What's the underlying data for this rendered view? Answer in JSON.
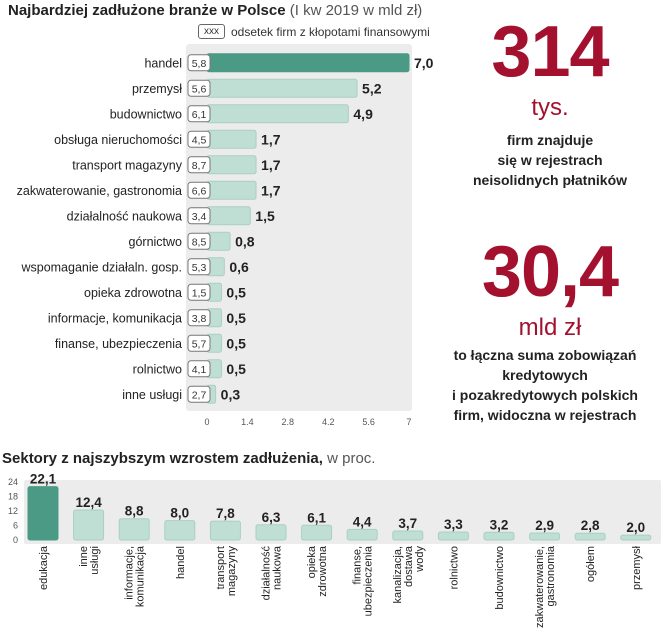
{
  "header": {
    "title_bold": "Najbardziej zadłużone branże w Polsce",
    "title_unit": "(I kw 2019 w mld zł)",
    "legend_box": "xxx",
    "legend_text": "odsetek firm z kłopotami finansowymi"
  },
  "stats": {
    "firms_number": "314",
    "firms_unit": "tys.",
    "firms_line1": "firm znajduje",
    "firms_line2": "się w rejestrach",
    "firms_line3": "neisolidnych płatników",
    "debt_number": "30,4",
    "debt_unit": "mld zł",
    "debt_line1": "to łączna suma zobowiązań",
    "debt_line2": "kredytowych",
    "debt_line3": "i pozakredytowych polskich",
    "debt_line4": "firm, widoczna w rejestrach"
  },
  "section2": {
    "title_bold": "Sektory z najszybszym wzrostem zadłużenia,",
    "title_unit": "w proc."
  },
  "colors": {
    "highlight": "#4a9a85",
    "bar": "#bfdfd5",
    "bar_edge": "#a9cfc3",
    "panel": "#ececec",
    "accent_red": "#a3112e"
  },
  "chart_data": [
    {
      "type": "bar",
      "orientation": "horizontal",
      "categories": [
        "handel",
        "przemysł",
        "budownictwo",
        "obsługa nieruchomości",
        "transport magazyny",
        "zakwaterowanie, gastronomia",
        "działalność naukowa",
        "górnictwo",
        "wspomaganie działaln. gosp.",
        "opieka zdrowotna",
        "informacje, komunikacja",
        "finanse, ubezpieczenia",
        "rolnictwo",
        "inne usługi"
      ],
      "values": [
        7.0,
        5.2,
        4.9,
        1.7,
        1.7,
        1.7,
        1.5,
        0.8,
        0.6,
        0.5,
        0.5,
        0.5,
        0.5,
        0.3
      ],
      "value_labels": [
        "7,0",
        "5,2",
        "4,9",
        "1,7",
        "1,7",
        "1,7",
        "1,5",
        "0,8",
        "0,6",
        "0,5",
        "0,5",
        "0,5",
        "0,5",
        "0,3"
      ],
      "percent_labels": [
        "5,8",
        "5,6",
        "6,1",
        "4,5",
        "8,7",
        "6,6",
        "3,4",
        "8,5",
        "5,3",
        "1,5",
        "3,8",
        "5,7",
        "4,1",
        "2,7"
      ],
      "xlim": [
        0,
        7
      ],
      "xticks": [
        "0",
        "1.4",
        "2.8",
        "4.2",
        "5.6",
        "7"
      ],
      "highlight_index": 0
    },
    {
      "type": "bar",
      "orientation": "vertical",
      "categories": [
        "edukacja",
        "inne usługi",
        "informacje, komunikacja",
        "handel",
        "transport magazyny",
        "działalność naukowa",
        "opieka zdrowotna",
        "finanse, ubezpieczenia",
        "kanalizacja, dostawa wody",
        "rolnictwo",
        "budownictwo",
        "zakwaterowanie, gastronomia",
        "ogółem",
        "przemysł"
      ],
      "label_lines": [
        [
          "edukacja"
        ],
        [
          "inne",
          "usługi"
        ],
        [
          "informacje,",
          "komunikacja"
        ],
        [
          "handel"
        ],
        [
          "transport",
          "magazyny"
        ],
        [
          "działalność",
          "naukowa"
        ],
        [
          "opieka",
          "zdrowotna"
        ],
        [
          "finanse,",
          "ubezpieczenia"
        ],
        [
          "kanalizacja,",
          "dostawa",
          "wody"
        ],
        [
          "rolnictwo"
        ],
        [
          "budownictwo"
        ],
        [
          "zakwaterowanie,",
          "gastronomia"
        ],
        [
          "ogółem"
        ],
        [
          "przemysł"
        ]
      ],
      "values": [
        22.1,
        12.4,
        8.8,
        8.0,
        7.8,
        6.3,
        6.1,
        4.4,
        3.7,
        3.3,
        3.2,
        2.9,
        2.8,
        2.0
      ],
      "value_labels": [
        "22,1",
        "12,4",
        "8,8",
        "8,0",
        "7,8",
        "6,3",
        "6,1",
        "4,4",
        "3,7",
        "3,3",
        "3,2",
        "2,9",
        "2,8",
        "2,0"
      ],
      "ylim": [
        0,
        24
      ],
      "yticks": [
        "24",
        "18",
        "12",
        "6",
        "0"
      ],
      "highlight_index": 0
    }
  ]
}
